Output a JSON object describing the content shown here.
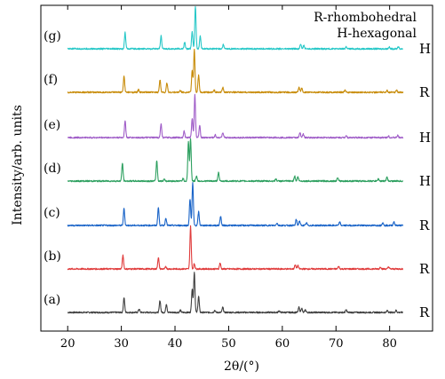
{
  "chart_data": {
    "type": "line",
    "title": "",
    "xlabel": "2θ/(°)",
    "ylabel": "Intensity/arb. units",
    "xlim": [
      15,
      88
    ],
    "xticks": [
      20,
      30,
      40,
      50,
      60,
      70,
      80
    ],
    "grid": false,
    "legend": [
      "R-rhombohedral",
      "H-hexagonal"
    ],
    "series": [
      {
        "label": "(a)",
        "phase": "R",
        "color": "#404040",
        "peak_height": 0.55,
        "peaks": [
          [
            30.5,
            0.35
          ],
          [
            33.3,
            0.08
          ],
          [
            37.2,
            0.28
          ],
          [
            38.4,
            0.2
          ],
          [
            41.0,
            0.05
          ],
          [
            43.2,
            0.55
          ],
          [
            43.6,
            0.95
          ],
          [
            44.4,
            0.38
          ],
          [
            47.4,
            0.05
          ],
          [
            48.9,
            0.12
          ],
          [
            59.4,
            0.04
          ],
          [
            63.1,
            0.12
          ],
          [
            63.6,
            0.1
          ],
          [
            64.3,
            0.06
          ],
          [
            71.9,
            0.06
          ],
          [
            79.6,
            0.05
          ],
          [
            81.2,
            0.05
          ]
        ]
      },
      {
        "label": "(b)",
        "phase": "R",
        "color": "#e03c3c",
        "peak_height": 0.55,
        "peaks": [
          [
            30.3,
            0.32
          ],
          [
            36.9,
            0.27
          ],
          [
            38.3,
            0.05
          ],
          [
            42.9,
            1.0
          ],
          [
            43.6,
            0.12
          ],
          [
            48.4,
            0.14
          ],
          [
            62.4,
            0.1
          ],
          [
            62.9,
            0.08
          ],
          [
            70.5,
            0.06
          ],
          [
            78.3,
            0.05
          ],
          [
            79.8,
            0.05
          ]
        ]
      },
      {
        "label": "(c)",
        "phase": "R",
        "color": "#1a64c8",
        "peak_height": 0.55,
        "peaks": [
          [
            30.5,
            0.4
          ],
          [
            36.9,
            0.42
          ],
          [
            38.3,
            0.18
          ],
          [
            42.8,
            0.62
          ],
          [
            43.3,
            1.0
          ],
          [
            44.4,
            0.32
          ],
          [
            48.5,
            0.22
          ],
          [
            59.0,
            0.06
          ],
          [
            62.6,
            0.14
          ],
          [
            63.2,
            0.11
          ],
          [
            64.5,
            0.06
          ],
          [
            70.7,
            0.08
          ],
          [
            78.7,
            0.07
          ],
          [
            80.8,
            0.09
          ]
        ]
      },
      {
        "label": "(d)",
        "phase": "H",
        "color": "#2ea060",
        "peak_height": 0.55,
        "peaks": [
          [
            30.2,
            0.42
          ],
          [
            36.6,
            0.48
          ],
          [
            38.0,
            0.05
          ],
          [
            41.5,
            0.06
          ],
          [
            42.5,
            0.93
          ],
          [
            42.9,
            1.0
          ],
          [
            44.0,
            0.12
          ],
          [
            48.1,
            0.2
          ],
          [
            58.8,
            0.05
          ],
          [
            62.3,
            0.12
          ],
          [
            62.9,
            0.1
          ],
          [
            70.3,
            0.08
          ],
          [
            77.9,
            0.05
          ],
          [
            79.5,
            0.09
          ]
        ]
      },
      {
        "label": "(e)",
        "phase": "H",
        "color": "#a05ec8",
        "peak_height": 0.55,
        "peaks": [
          [
            30.7,
            0.4
          ],
          [
            37.4,
            0.32
          ],
          [
            41.7,
            0.15
          ],
          [
            43.2,
            0.45
          ],
          [
            43.7,
            1.0
          ],
          [
            44.6,
            0.28
          ],
          [
            47.5,
            0.06
          ],
          [
            48.9,
            0.1
          ],
          [
            63.3,
            0.12
          ],
          [
            63.9,
            0.08
          ],
          [
            71.9,
            0.05
          ],
          [
            79.8,
            0.04
          ],
          [
            81.5,
            0.05
          ]
        ]
      },
      {
        "label": "(f)",
        "phase": "R",
        "color": "#c88c0a",
        "peak_height": 0.55,
        "peaks": [
          [
            30.5,
            0.38
          ],
          [
            33.2,
            0.06
          ],
          [
            37.2,
            0.3
          ],
          [
            38.5,
            0.22
          ],
          [
            41.0,
            0.05
          ],
          [
            43.2,
            0.5
          ],
          [
            43.6,
            1.0
          ],
          [
            44.4,
            0.4
          ],
          [
            47.3,
            0.05
          ],
          [
            48.9,
            0.12
          ],
          [
            63.1,
            0.12
          ],
          [
            63.6,
            0.1
          ],
          [
            71.7,
            0.06
          ],
          [
            79.5,
            0.05
          ],
          [
            81.3,
            0.05
          ]
        ]
      },
      {
        "label": "(g)",
        "phase": "H",
        "color": "#28c8c8",
        "peak_height": 0.55,
        "peaks": [
          [
            30.7,
            0.38
          ],
          [
            37.4,
            0.3
          ],
          [
            41.8,
            0.15
          ],
          [
            43.2,
            0.4
          ],
          [
            43.8,
            1.0
          ],
          [
            44.7,
            0.3
          ],
          [
            49.0,
            0.1
          ],
          [
            63.4,
            0.12
          ],
          [
            64.0,
            0.08
          ],
          [
            71.9,
            0.05
          ],
          [
            79.9,
            0.04
          ],
          [
            81.6,
            0.05
          ]
        ]
      }
    ]
  }
}
